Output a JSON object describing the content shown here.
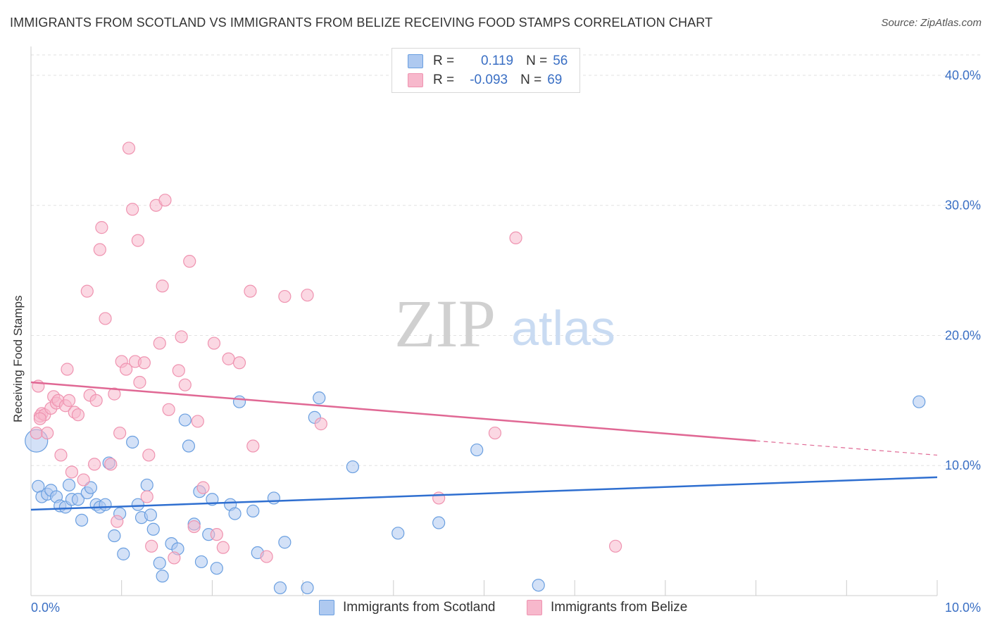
{
  "title": "IMMIGRANTS FROM SCOTLAND VS IMMIGRANTS FROM BELIZE RECEIVING FOOD STAMPS CORRELATION CHART",
  "source": "Source: ZipAtlas.com",
  "watermark": {
    "zip": "ZIP",
    "atlas": "atlas"
  },
  "legend": {
    "rows": [
      {
        "r_label": "R =",
        "r_value": "0.119",
        "n_label": "N =",
        "n_value": "56",
        "color": "#aec9f0"
      },
      {
        "r_label": "R =",
        "r_value": "-0.093",
        "n_label": "N =",
        "n_value": "69",
        "color": "#f7b8cc"
      }
    ]
  },
  "bottom_legend": [
    {
      "label": "Immigrants from Scotland",
      "color": "#aec9f0"
    },
    {
      "label": "Immigrants from Belize",
      "color": "#f7b8cc"
    }
  ],
  "chart_data": {
    "type": "scatter",
    "ylabel": "Receiving Food Stamps",
    "xlabel": "",
    "xlim": [
      0,
      10
    ],
    "ylim": [
      0,
      42
    ],
    "x_tick_labels": [
      "0.0%",
      "10.0%"
    ],
    "y_ticks": [
      10,
      20,
      30,
      40
    ],
    "y_tick_labels": [
      "10.0%",
      "20.0%",
      "30.0%",
      "40.0%"
    ],
    "grid": true,
    "series": [
      {
        "name": "Immigrants from Scotland",
        "color": "#6a9fe0",
        "fill": "#aec9f0",
        "line_color": "#2f6fd0",
        "trend": {
          "x": [
            0,
            10
          ],
          "y": [
            6.6,
            9.1
          ]
        },
        "points": [
          [
            0.06,
            11.9
          ],
          [
            0.08,
            8.4
          ],
          [
            0.12,
            7.6
          ],
          [
            0.18,
            7.8
          ],
          [
            0.22,
            8.1
          ],
          [
            0.28,
            7.6
          ],
          [
            0.32,
            6.9
          ],
          [
            0.38,
            6.8
          ],
          [
            0.42,
            8.5
          ],
          [
            0.45,
            7.4
          ],
          [
            0.52,
            7.4
          ],
          [
            0.56,
            5.8
          ],
          [
            0.62,
            7.9
          ],
          [
            0.66,
            8.3
          ],
          [
            0.72,
            7.0
          ],
          [
            0.76,
            6.8
          ],
          [
            0.82,
            7.0
          ],
          [
            0.86,
            10.2
          ],
          [
            0.92,
            4.6
          ],
          [
            0.98,
            6.3
          ],
          [
            1.02,
            3.2
          ],
          [
            1.12,
            11.8
          ],
          [
            1.18,
            7.0
          ],
          [
            1.22,
            6.0
          ],
          [
            1.28,
            8.5
          ],
          [
            1.32,
            6.2
          ],
          [
            1.35,
            5.1
          ],
          [
            1.42,
            2.5
          ],
          [
            1.45,
            1.5
          ],
          [
            1.55,
            4.0
          ],
          [
            1.62,
            3.6
          ],
          [
            1.7,
            13.5
          ],
          [
            1.74,
            11.5
          ],
          [
            1.8,
            5.5
          ],
          [
            1.86,
            8.0
          ],
          [
            1.88,
            2.6
          ],
          [
            1.96,
            4.7
          ],
          [
            2.0,
            7.4
          ],
          [
            2.05,
            2.1
          ],
          [
            2.2,
            7.0
          ],
          [
            2.25,
            6.3
          ],
          [
            2.3,
            14.9
          ],
          [
            2.45,
            6.5
          ],
          [
            2.5,
            3.3
          ],
          [
            2.68,
            7.5
          ],
          [
            2.75,
            0.6
          ],
          [
            2.8,
            4.1
          ],
          [
            3.05,
            0.6
          ],
          [
            3.13,
            13.7
          ],
          [
            3.18,
            15.2
          ],
          [
            3.55,
            9.9
          ],
          [
            4.05,
            4.8
          ],
          [
            4.5,
            5.6
          ],
          [
            4.92,
            11.2
          ],
          [
            5.6,
            0.8
          ],
          [
            9.8,
            14.9
          ]
        ]
      },
      {
        "name": "Immigrants from Belize",
        "color": "#ef93b0",
        "fill": "#f7b8cc",
        "line_color": "#e06894",
        "trend": {
          "x": [
            0,
            8.0
          ],
          "y": [
            16.4,
            11.9
          ]
        },
        "trend_dashed": {
          "x": [
            8.0,
            10
          ],
          "y": [
            11.9,
            10.8
          ]
        },
        "points": [
          [
            0.06,
            12.5
          ],
          [
            0.08,
            16.1
          ],
          [
            0.1,
            13.8
          ],
          [
            0.12,
            14.0
          ],
          [
            0.15,
            13.9
          ],
          [
            0.18,
            12.5
          ],
          [
            0.22,
            14.4
          ],
          [
            0.25,
            15.3
          ],
          [
            0.28,
            14.8
          ],
          [
            0.3,
            15.0
          ],
          [
            0.33,
            10.8
          ],
          [
            0.38,
            14.6
          ],
          [
            0.4,
            17.4
          ],
          [
            0.42,
            15.0
          ],
          [
            0.45,
            9.5
          ],
          [
            0.48,
            14.1
          ],
          [
            0.52,
            13.9
          ],
          [
            0.58,
            8.9
          ],
          [
            0.62,
            23.4
          ],
          [
            0.65,
            15.4
          ],
          [
            0.7,
            10.1
          ],
          [
            0.72,
            15.0
          ],
          [
            0.76,
            26.6
          ],
          [
            0.78,
            28.3
          ],
          [
            0.82,
            21.3
          ],
          [
            0.88,
            10.1
          ],
          [
            0.92,
            15.5
          ],
          [
            0.95,
            5.7
          ],
          [
            0.98,
            12.5
          ],
          [
            1.0,
            18.0
          ],
          [
            1.05,
            17.4
          ],
          [
            1.08,
            34.4
          ],
          [
            1.12,
            29.7
          ],
          [
            1.15,
            18.0
          ],
          [
            1.18,
            27.3
          ],
          [
            1.2,
            16.4
          ],
          [
            1.25,
            17.9
          ],
          [
            1.28,
            7.6
          ],
          [
            1.3,
            10.8
          ],
          [
            1.33,
            3.8
          ],
          [
            1.38,
            30.0
          ],
          [
            1.42,
            19.4
          ],
          [
            1.45,
            23.8
          ],
          [
            1.48,
            30.4
          ],
          [
            1.52,
            14.3
          ],
          [
            1.58,
            2.9
          ],
          [
            1.63,
            17.3
          ],
          [
            1.66,
            19.9
          ],
          [
            1.7,
            16.2
          ],
          [
            1.75,
            25.7
          ],
          [
            1.8,
            5.3
          ],
          [
            1.84,
            13.4
          ],
          [
            1.9,
            8.3
          ],
          [
            2.02,
            19.4
          ],
          [
            2.05,
            4.7
          ],
          [
            2.12,
            3.7
          ],
          [
            2.18,
            18.2
          ],
          [
            2.3,
            17.9
          ],
          [
            2.42,
            23.4
          ],
          [
            2.45,
            11.5
          ],
          [
            2.6,
            3.0
          ],
          [
            2.8,
            23.0
          ],
          [
            3.05,
            23.1
          ],
          [
            3.2,
            13.2
          ],
          [
            4.5,
            7.5
          ],
          [
            5.12,
            12.5
          ],
          [
            5.35,
            27.5
          ],
          [
            6.45,
            3.8
          ],
          [
            0.1,
            13.6
          ]
        ]
      }
    ]
  }
}
